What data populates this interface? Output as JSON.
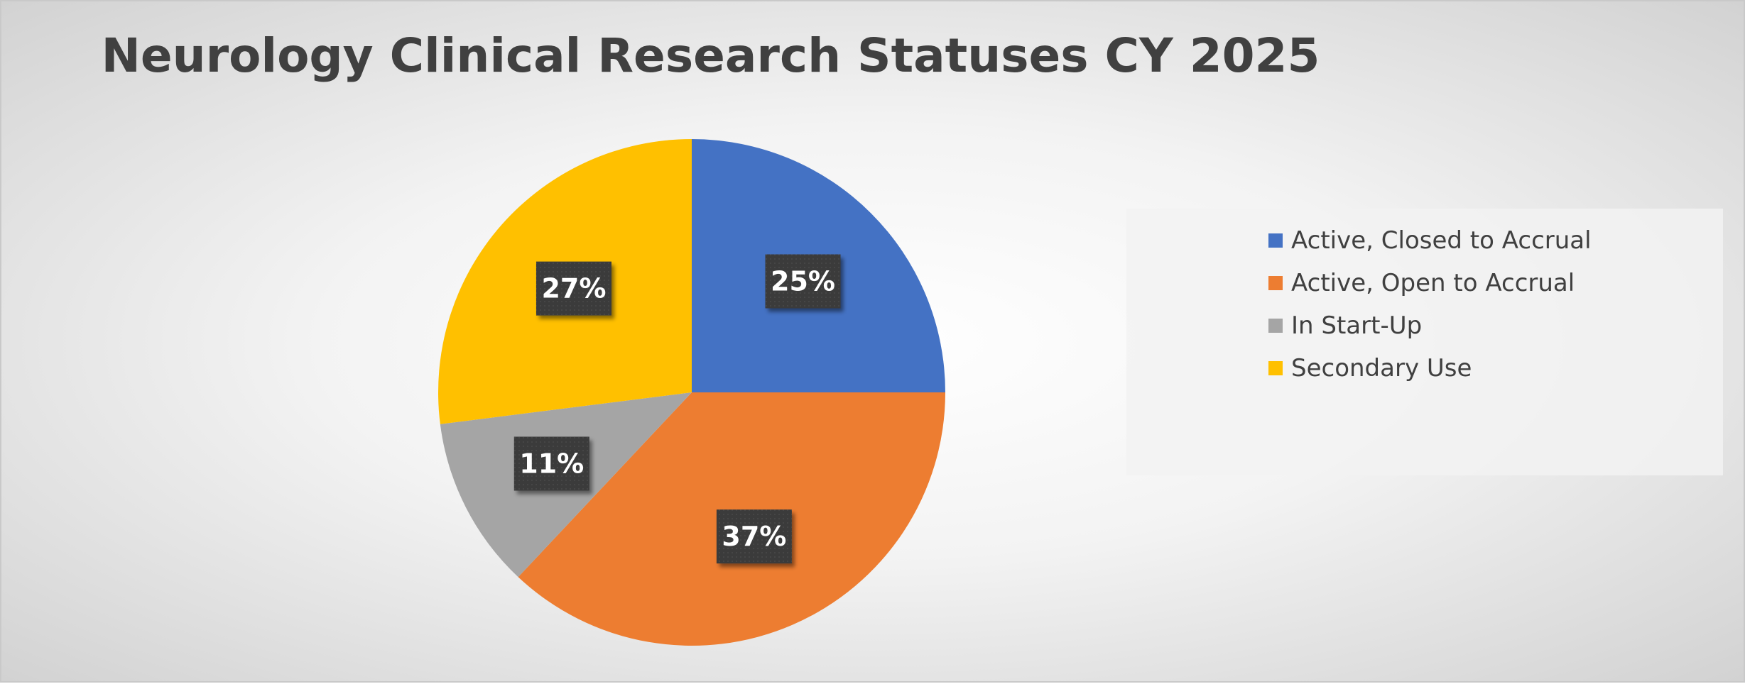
{
  "chart_data": {
    "type": "pie",
    "title": "Neurology Clinical Research Statuses CY 2025",
    "categories": [
      "Active, Closed to Accrual",
      "Active, Open to Accrual",
      "In Start-Up",
      "Secondary Use"
    ],
    "values": [
      25,
      37,
      11,
      27
    ],
    "data_labels": [
      "25%",
      "37%",
      "11%",
      "27%"
    ],
    "colors": [
      "#4472C4",
      "#ED7D31",
      "#A5A5A5",
      "#FFC000"
    ],
    "legend_position": "right"
  }
}
